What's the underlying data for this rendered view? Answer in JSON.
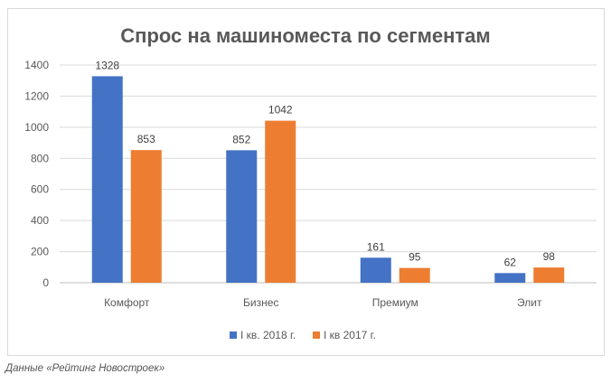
{
  "chart_data": {
    "type": "bar",
    "title": "Спрос на машиноместа по сегментам",
    "categories": [
      "Комфорт",
      "Бизнес",
      "Премиум",
      "Элит"
    ],
    "series": [
      {
        "name": "I кв. 2018 г.",
        "color": "#4472c4",
        "values": [
          1328,
          852,
          161,
          62
        ]
      },
      {
        "name": "I кв 2017 г.",
        "color": "#ed7d31",
        "values": [
          853,
          1042,
          95,
          98
        ]
      }
    ],
    "ylim": [
      0,
      1400
    ],
    "yticks": [
      0,
      200,
      400,
      600,
      800,
      1000,
      1200,
      1400
    ],
    "grid": true,
    "legend": "bottom",
    "xlabel": "",
    "ylabel": ""
  },
  "caption": "Данные «Рейтинг Новостроек»"
}
